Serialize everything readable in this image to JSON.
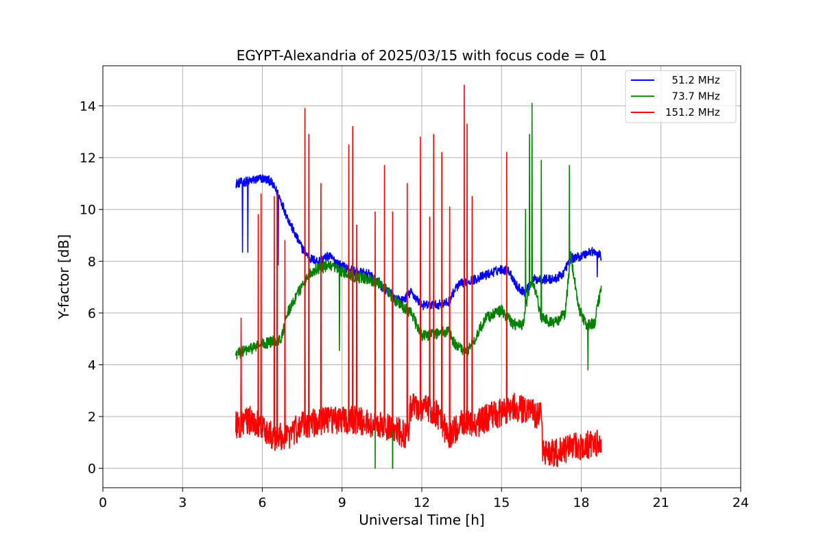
{
  "chart_data": {
    "type": "line",
    "title": "EGYPT-Alexandria of 2025/03/15 with focus code = 01",
    "xlabel": "Universal Time [h]",
    "ylabel": "Y-factor [dB]",
    "xlim": [
      0,
      24
    ],
    "ylim": [
      -0.75,
      15.55
    ],
    "xticks": [
      0,
      3,
      6,
      9,
      12,
      15,
      18,
      21,
      24
    ],
    "yticks": [
      0,
      2,
      4,
      6,
      8,
      10,
      12,
      14
    ],
    "grid": true,
    "legend_position": "top-right",
    "series": [
      {
        "name": "  51.2 MHz",
        "color": "#0000ff",
        "noise": 0.18,
        "points": [
          [
            5.0,
            11.0
          ],
          [
            5.5,
            11.1
          ],
          [
            6.0,
            11.2
          ],
          [
            6.3,
            11.1
          ],
          [
            6.6,
            10.6
          ],
          [
            6.9,
            9.8
          ],
          [
            7.2,
            9.1
          ],
          [
            7.5,
            8.5
          ],
          [
            7.8,
            8.1
          ],
          [
            8.1,
            8.0
          ],
          [
            8.5,
            8.2
          ],
          [
            9.0,
            7.8
          ],
          [
            9.5,
            7.6
          ],
          [
            10.0,
            7.5
          ],
          [
            10.5,
            7.0
          ],
          [
            10.8,
            6.8
          ],
          [
            11.0,
            6.5
          ],
          [
            11.3,
            6.5
          ],
          [
            11.6,
            6.8
          ],
          [
            12.0,
            6.3
          ],
          [
            12.5,
            6.3
          ],
          [
            13.0,
            6.4
          ],
          [
            13.3,
            7.0
          ],
          [
            13.6,
            7.2
          ],
          [
            14.0,
            7.3
          ],
          [
            14.5,
            7.5
          ],
          [
            15.0,
            7.7
          ],
          [
            15.3,
            7.6
          ],
          [
            15.6,
            7.0
          ],
          [
            15.9,
            6.8
          ],
          [
            16.2,
            7.3
          ],
          [
            16.6,
            7.3
          ],
          [
            17.0,
            7.3
          ],
          [
            17.3,
            7.5
          ],
          [
            17.6,
            8.1
          ],
          [
            18.0,
            8.2
          ],
          [
            18.4,
            8.4
          ],
          [
            18.75,
            8.2
          ]
        ],
        "spikes": [
          [
            5.25,
            8.35
          ],
          [
            5.45,
            8.35
          ],
          [
            6.6,
            7.85
          ],
          [
            10.9,
            0.0
          ],
          [
            18.6,
            7.4
          ]
        ]
      },
      {
        "name": "  73.7 MHz",
        "color": "#008000",
        "noise": 0.22,
        "points": [
          [
            5.0,
            4.4
          ],
          [
            5.5,
            4.6
          ],
          [
            6.0,
            4.8
          ],
          [
            6.4,
            4.9
          ],
          [
            6.7,
            5.0
          ],
          [
            7.0,
            6.1
          ],
          [
            7.3,
            6.7
          ],
          [
            7.7,
            7.4
          ],
          [
            8.0,
            7.7
          ],
          [
            8.5,
            7.8
          ],
          [
            9.0,
            7.6
          ],
          [
            9.5,
            7.4
          ],
          [
            10.0,
            7.3
          ],
          [
            10.5,
            7.1
          ],
          [
            10.8,
            6.7
          ],
          [
            11.2,
            6.3
          ],
          [
            11.6,
            6.0
          ],
          [
            12.0,
            5.1
          ],
          [
            12.5,
            5.2
          ],
          [
            13.0,
            5.3
          ],
          [
            13.3,
            4.7
          ],
          [
            13.7,
            4.5
          ],
          [
            14.0,
            5.0
          ],
          [
            14.4,
            5.8
          ],
          [
            15.0,
            6.1
          ],
          [
            15.4,
            5.6
          ],
          [
            15.8,
            5.5
          ],
          [
            16.0,
            6.8
          ],
          [
            16.2,
            7.2
          ],
          [
            16.5,
            5.8
          ],
          [
            17.0,
            5.6
          ],
          [
            17.4,
            6.0
          ],
          [
            17.6,
            8.3
          ],
          [
            17.9,
            6.2
          ],
          [
            18.2,
            5.5
          ],
          [
            18.5,
            5.6
          ],
          [
            18.75,
            7.0
          ]
        ],
        "spikes": [
          [
            8.9,
            4.55
          ],
          [
            10.25,
            0.0
          ],
          [
            10.9,
            0.0
          ],
          [
            15.9,
            10.0
          ],
          [
            16.05,
            12.9
          ],
          [
            16.15,
            14.1
          ],
          [
            16.5,
            11.9
          ],
          [
            17.55,
            11.7
          ],
          [
            18.25,
            3.8
          ]
        ]
      },
      {
        "name": "151.2 MHz",
        "color": "#ff0000",
        "noise": 0.55,
        "points": [
          [
            5.0,
            1.5
          ],
          [
            5.5,
            1.7
          ],
          [
            6.0,
            1.4
          ],
          [
            6.5,
            1.0
          ],
          [
            7.0,
            1.1
          ],
          [
            7.5,
            1.5
          ],
          [
            8.0,
            1.6
          ],
          [
            8.5,
            1.7
          ],
          [
            9.0,
            1.7
          ],
          [
            9.5,
            1.7
          ],
          [
            10.0,
            1.6
          ],
          [
            10.5,
            1.5
          ],
          [
            11.0,
            1.3
          ],
          [
            11.5,
            1.1
          ],
          [
            11.55,
            2.2
          ],
          [
            12.0,
            2.2
          ],
          [
            12.5,
            2.0
          ],
          [
            13.0,
            1.1
          ],
          [
            13.5,
            1.6
          ],
          [
            14.0,
            1.5
          ],
          [
            14.5,
            1.8
          ],
          [
            15.0,
            2.0
          ],
          [
            15.5,
            2.2
          ],
          [
            16.0,
            2.0
          ],
          [
            16.5,
            1.9
          ],
          [
            16.55,
            0.5
          ],
          [
            17.0,
            0.4
          ],
          [
            17.5,
            0.6
          ],
          [
            18.0,
            0.7
          ],
          [
            18.5,
            0.8
          ],
          [
            18.75,
            0.9
          ]
        ],
        "spikes": [
          [
            5.2,
            5.8
          ],
          [
            5.85,
            9.8
          ],
          [
            5.95,
            10.6
          ],
          [
            6.45,
            10.5
          ],
          [
            6.55,
            10.6
          ],
          [
            6.85,
            8.8
          ],
          [
            7.6,
            13.9
          ],
          [
            7.75,
            12.9
          ],
          [
            8.2,
            11.0
          ],
          [
            9.25,
            12.5
          ],
          [
            9.4,
            13.2
          ],
          [
            9.55,
            9.4
          ],
          [
            10.25,
            9.9
          ],
          [
            10.6,
            11.7
          ],
          [
            10.9,
            9.9
          ],
          [
            11.45,
            11.0
          ],
          [
            11.95,
            12.8
          ],
          [
            12.3,
            9.7
          ],
          [
            12.45,
            12.9
          ],
          [
            12.75,
            12.2
          ],
          [
            13.05,
            10.1
          ],
          [
            13.6,
            14.8
          ],
          [
            13.7,
            13.3
          ],
          [
            13.9,
            10.5
          ],
          [
            15.2,
            12.2
          ]
        ]
      }
    ]
  }
}
